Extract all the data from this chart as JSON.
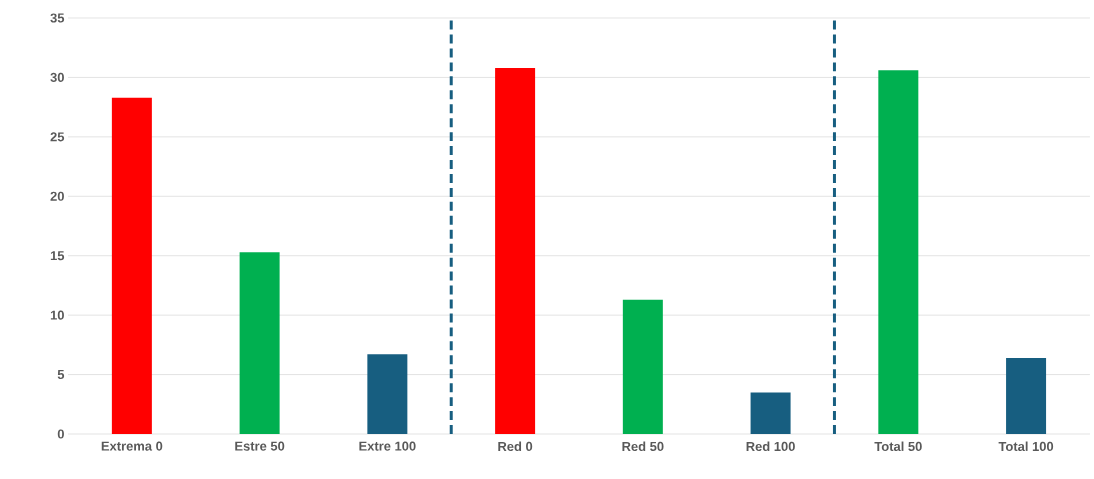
{
  "chart_data": {
    "type": "bar",
    "categories": [
      "Extrema 0",
      "Estre 50",
      "Extre 100",
      "Red 0",
      "Red 50",
      "Red 100",
      "Total 50",
      "Total 100"
    ],
    "values": [
      28.3,
      15.3,
      6.7,
      30.8,
      11.3,
      3.5,
      30.6,
      6.4
    ],
    "colors": [
      "#ff0000",
      "#00b050",
      "#175e80",
      "#ff0000",
      "#00b050",
      "#175e80",
      "#00b050",
      "#175e80"
    ],
    "ylim": [
      0,
      35
    ],
    "yticks": [
      0,
      5,
      10,
      15,
      20,
      25,
      30,
      35
    ],
    "grid": "y"
  }
}
